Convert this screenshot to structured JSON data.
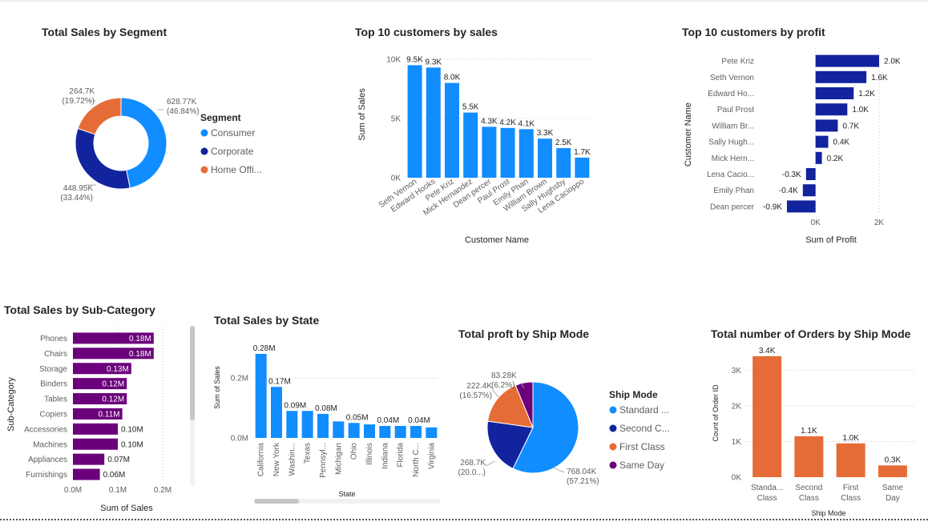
{
  "colors": {
    "consumer": "#118DFF",
    "corporate": "#12239E",
    "home_office": "#E66C37",
    "same_day": "#6B007B",
    "top_sales_bar": "#118DFF",
    "top_profit_bar": "#12239E",
    "subcat_bar": "#6B007B",
    "state_bar": "#118DFF",
    "orders_bar": "#E66C37"
  },
  "chart_data": [
    {
      "id": "segment",
      "type": "pie",
      "title": "Total Sales by Segment",
      "legend_title": "Segment",
      "legend_placement": "right",
      "slices": [
        {
          "name": "Consumer",
          "legend_label": "Consumer",
          "value": 628.77,
          "label": "628.77K",
          "pct": "(46.84%)"
        },
        {
          "name": "Corporate",
          "legend_label": "Corporate",
          "value": 448.95,
          "label": "448.95K",
          "pct": "(33.44%)"
        },
        {
          "name": "Home Office",
          "legend_label": "Home Offi...",
          "value": 264.7,
          "label": "264.7K",
          "pct": "(19.72%)"
        }
      ]
    },
    {
      "id": "top_sales",
      "type": "bar",
      "title": "Top 10 customers by sales",
      "xlabel": "Customer Name",
      "ylabel": "Sum of Sales",
      "ylim": [
        0,
        10000
      ],
      "yticks": [
        0,
        5000,
        10000
      ],
      "ytick_labels": [
        "0K",
        "5K",
        "10K"
      ],
      "categories": [
        "Seth Vernon",
        "Edward Hooks",
        "Pete Kriz",
        "Mick Hernandez",
        "Dean percer",
        "Paul Prost",
        "Emily Phan",
        "William Brown",
        "Sally Hughsby",
        "Lena Cacioppo"
      ],
      "values": [
        9500,
        9300,
        8000,
        5500,
        4300,
        4200,
        4100,
        3300,
        2500,
        1700
      ],
      "data_labels": [
        "9.5K",
        "9.3K",
        "8.0K",
        "5.5K",
        "4.3K",
        "4.2K",
        "4.1K",
        "3.3K",
        "2.5K",
        "1.7K"
      ],
      "grid": true
    },
    {
      "id": "top_profit",
      "type": "bar",
      "orientation": "horizontal",
      "title": "Top 10 customers by profit",
      "xlabel": "Sum of Profit",
      "ylabel": "Customer Name",
      "xlim": [
        -1000,
        2000
      ],
      "xticks": [
        0,
        2000
      ],
      "xtick_labels": [
        "0K",
        "2K"
      ],
      "categories": [
        "Pete Kriz",
        "Seth Vernon",
        "Edward Ho...",
        "Paul Prost",
        "William Br...",
        "Sally Hugh...",
        "Mick Hern...",
        "Lena Cacio...",
        "Emily Phan",
        "Dean percer"
      ],
      "values": [
        2000,
        1600,
        1200,
        1000,
        700,
        400,
        200,
        -300,
        -400,
        -900
      ],
      "data_labels": [
        "2.0K",
        "1.6K",
        "1.2K",
        "1.0K",
        "0.7K",
        "0.4K",
        "0.2K",
        "-0.3K",
        "-0.4K",
        "-0.9K"
      ],
      "grid": true
    },
    {
      "id": "subcat",
      "type": "bar",
      "orientation": "horizontal",
      "title": "Total Sales by Sub-Category",
      "xlabel": "Sum of Sales",
      "ylabel": "Sub-Category",
      "xlim": [
        0,
        0.2
      ],
      "xticks": [
        0,
        0.1,
        0.2
      ],
      "xtick_labels": [
        "0.0M",
        "0.1M",
        "0.2M"
      ],
      "categories": [
        "Phones",
        "Chairs",
        "Storage",
        "Binders",
        "Tables",
        "Copiers",
        "Accessories",
        "Machines",
        "Appliances",
        "Furnishings"
      ],
      "values": [
        0.18,
        0.18,
        0.13,
        0.12,
        0.12,
        0.11,
        0.1,
        0.1,
        0.07,
        0.06
      ],
      "data_labels": [
        "0.18M",
        "0.18M",
        "0.13M",
        "0.12M",
        "0.12M",
        "0.11M",
        "0.10M",
        "0.10M",
        "0.07M",
        "0.06M"
      ],
      "grid": true
    },
    {
      "id": "state",
      "type": "bar",
      "title": "Total Sales by State",
      "xlabel": "State",
      "ylabel": "Sum of Sales",
      "ylim": [
        0,
        0.28
      ],
      "yticks": [
        0,
        0.2
      ],
      "ytick_labels": [
        "0.0M",
        "0.2M"
      ],
      "categories": [
        "California",
        "New York",
        "Washin...",
        "Texas",
        "Pennsyl...",
        "Michigan",
        "Ohio",
        "Illinois",
        "Indiana",
        "Florida",
        "North C...",
        "Virginia"
      ],
      "values": [
        0.28,
        0.17,
        0.09,
        0.09,
        0.08,
        0.055,
        0.05,
        0.045,
        0.04,
        0.04,
        0.04,
        0.035
      ],
      "data_labels": [
        "0.28M",
        "0.17M",
        "0.09M",
        "",
        "0.08M",
        "",
        "0.05M",
        "",
        "0.04M",
        "",
        "0.04M",
        ""
      ],
      "grid": true
    },
    {
      "id": "ship_profit",
      "type": "pie",
      "title": "Total proft by Ship Mode",
      "legend_title": "Ship Mode",
      "legend_placement": "right",
      "slices": [
        {
          "name": "Standard Class",
          "legend_label": "Standard ...",
          "value": 768.04,
          "label": "768.04K",
          "pct": "(57.21%)"
        },
        {
          "name": "Second Class",
          "legend_label": "Second C...",
          "value": 268.7,
          "label": "268.7K",
          "pct": "(20.0...)"
        },
        {
          "name": "First Class",
          "legend_label": "First Class",
          "value": 222.4,
          "label": "222.4K",
          "pct": "(16.57%)"
        },
        {
          "name": "Same Day",
          "legend_label": "Same Day",
          "value": 83.28,
          "label": "83.28K",
          "pct": "(6.2%)"
        }
      ]
    },
    {
      "id": "orders",
      "type": "bar",
      "title": "Total number of Orders by Ship Mode",
      "xlabel": "Ship Mode",
      "ylabel": "Count of Order ID",
      "ylim": [
        0,
        3600
      ],
      "yticks": [
        0,
        1000,
        2000,
        3000
      ],
      "ytick_labels": [
        "0K",
        "1K",
        "2K",
        "3K"
      ],
      "categories": [
        "Standa... Class",
        "Second Class",
        "First Class",
        "Same Day"
      ],
      "values": [
        3400,
        1150,
        950,
        330
      ],
      "data_labels": [
        "3.4K",
        "1.1K",
        "1.0K",
        "0.3K"
      ],
      "grid": true
    }
  ]
}
